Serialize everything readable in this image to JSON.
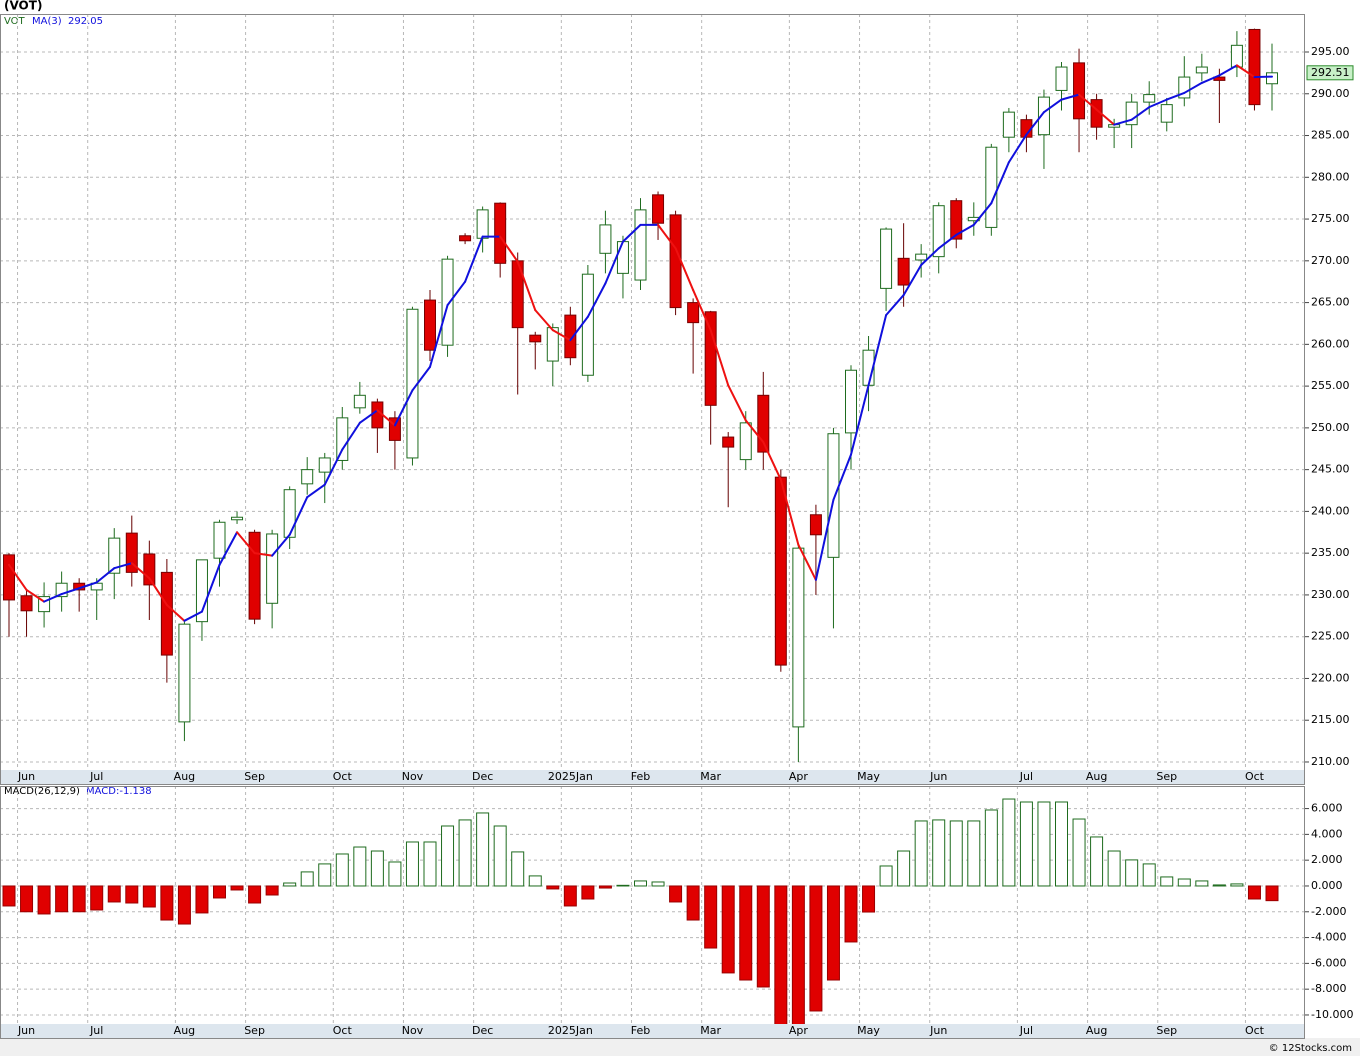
{
  "chart_data": [
    {
      "type": "candlestick",
      "title": "(VOT)",
      "symbol": "VOT",
      "categories": [
        null,
        "Jun",
        null,
        null,
        null,
        "Jul",
        null,
        null,
        null,
        null,
        "Aug",
        null,
        null,
        null,
        "Sep",
        null,
        null,
        null,
        null,
        "Oct",
        null,
        null,
        null,
        "Nov",
        null,
        null,
        null,
        "Dec",
        null,
        null,
        null,
        null,
        "2025Jan",
        null,
        null,
        null,
        "Feb",
        null,
        null,
        null,
        "Mar",
        null,
        null,
        null,
        null,
        "Apr",
        null,
        null,
        null,
        "May",
        null,
        null,
        null,
        "Jun",
        null,
        null,
        null,
        null,
        "Jul",
        null,
        null,
        null,
        "Aug",
        null,
        null,
        null,
        "Sep",
        null,
        null,
        null,
        null,
        "Oct",
        null
      ],
      "open": [
        234.8,
        229.9,
        228.0,
        229.8,
        231.4,
        230.6,
        232.6,
        237.4,
        234.9,
        232.7,
        214.8,
        226.8,
        234.4,
        239.0,
        237.5,
        229.0,
        236.9,
        243.3,
        244.7,
        246.1,
        252.4,
        253.1,
        251.2,
        246.4,
        265.3,
        259.9,
        273.0,
        272.7,
        276.9,
        270.0,
        261.1,
        258.0,
        263.5,
        256.3,
        270.9,
        268.5,
        267.7,
        277.9,
        275.5,
        265.0,
        263.9,
        248.9,
        246.2,
        253.9,
        244.1,
        214.2,
        239.6,
        234.5,
        249.4,
        255.1,
        266.7,
        270.3,
        270.1,
        270.5,
        277.2,
        274.8,
        274.0,
        284.8,
        286.9,
        285.1,
        290.4,
        293.7,
        289.3,
        286.0,
        286.3,
        289.0,
        286.6,
        289.5,
        292.5,
        292.0,
        293.2,
        297.7,
        291.2
      ],
      "high": [
        235.0,
        230.5,
        231.5,
        232.8,
        232.0,
        232.0,
        238.0,
        239.5,
        236.5,
        234.3,
        226.8,
        234.2,
        239.0,
        240.0,
        237.8,
        237.8,
        243.0,
        246.5,
        247.0,
        252.5,
        255.5,
        253.5,
        252.0,
        264.5,
        266.5,
        270.6,
        273.3,
        276.5,
        277.0,
        271.0,
        261.5,
        262.5,
        264.5,
        269.5,
        276.0,
        273.0,
        277.5,
        278.3,
        276.0,
        265.5,
        264.0,
        249.5,
        252.0,
        256.7,
        245.0,
        236.0,
        240.8,
        250.0,
        257.5,
        261.0,
        274.0,
        274.5,
        272.0,
        277.0,
        277.5,
        277.0,
        284.0,
        288.3,
        287.5,
        290.5,
        293.8,
        295.4,
        290.0,
        287.0,
        290.0,
        291.5,
        289.5,
        294.5,
        294.8,
        293.0,
        297.5,
        297.8,
        296.0
      ],
      "low": [
        225.0,
        225.0,
        226.1,
        228.0,
        228.0,
        227.0,
        229.5,
        231.0,
        227.0,
        219.5,
        212.5,
        224.5,
        231.0,
        238.5,
        226.5,
        226.0,
        235.5,
        242.0,
        241.0,
        245.0,
        251.7,
        247.0,
        245.0,
        245.5,
        258.0,
        258.5,
        272.0,
        271.0,
        268.0,
        254.0,
        257.0,
        255.0,
        257.5,
        255.5,
        268.5,
        265.5,
        266.5,
        272.5,
        263.5,
        256.5,
        248.0,
        240.5,
        245.0,
        245.0,
        220.8,
        210.0,
        230.0,
        226.0,
        245.0,
        252.0,
        264.0,
        264.5,
        268.0,
        268.5,
        271.5,
        273.0,
        273.0,
        283.0,
        283.0,
        281.0,
        288.0,
        283.0,
        284.5,
        283.5,
        283.5,
        287.5,
        285.5,
        288.5,
        291.5,
        286.5,
        292.0,
        288.0,
        288.0
      ],
      "close": [
        229.4,
        228.1,
        229.8,
        231.4,
        230.6,
        231.4,
        236.8,
        232.7,
        231.2,
        222.8,
        226.5,
        234.2,
        238.7,
        239.3,
        227.1,
        237.3,
        242.6,
        245.0,
        246.4,
        251.2,
        253.9,
        250.0,
        248.5,
        264.2,
        259.3,
        270.2,
        272.4,
        276.1,
        269.7,
        262.0,
        260.3,
        262.0,
        258.4,
        268.4,
        274.3,
        272.3,
        276.1,
        274.5,
        264.4,
        262.6,
        252.7,
        247.7,
        250.6,
        247.1,
        221.6,
        235.6,
        237.2,
        249.3,
        256.9,
        259.3,
        273.8,
        267.1,
        270.8,
        276.6,
        272.6,
        275.2,
        283.6,
        287.8,
        284.8,
        289.6,
        293.2,
        287.0,
        286.0,
        286.3,
        289.0,
        289.9,
        288.7,
        292.0,
        293.2,
        291.6,
        295.8,
        288.7,
        292.51
      ],
      "up_color": "#1e6b1e",
      "down_color": "#e00000",
      "ma": {
        "name": "MA(3)",
        "last": 292.05,
        "color_up": "#1010dd",
        "color_down": "#ee1111",
        "values": [
          233.6,
          230.6,
          229.2,
          230.1,
          230.8,
          231.5,
          233.2,
          233.8,
          232.0,
          228.8,
          226.9,
          228.0,
          233.6,
          237.5,
          235.0,
          234.7,
          237.2,
          241.7,
          243.2,
          247.4,
          250.6,
          252.1,
          250.3,
          254.5,
          257.3,
          264.7,
          267.5,
          272.9,
          272.9,
          269.9,
          264.1,
          261.7,
          260.5,
          263.3,
          267.3,
          272.3,
          274.3,
          274.3,
          271.5,
          266.5,
          261.7,
          255.1,
          250.9,
          248.3,
          243.8,
          236.0,
          231.8,
          241.4,
          246.8,
          255.1,
          263.5,
          265.9,
          269.5,
          271.5,
          273.1,
          274.3,
          276.9,
          281.8,
          285.1,
          287.8,
          289.3,
          289.9,
          288.1,
          286.3,
          286.9,
          288.4,
          289.3,
          290.1,
          291.3,
          292.2,
          293.4,
          292.0,
          292.05
        ]
      },
      "ylim": [
        209.04,
        299.55
      ],
      "yticks": [
        {
          "value": 210,
          "label": "210.00"
        },
        {
          "value": 215,
          "label": "215.00"
        },
        {
          "value": 220,
          "label": "220.00"
        },
        {
          "value": 225,
          "label": "225.00"
        },
        {
          "value": 230,
          "label": "230.00"
        },
        {
          "value": 235,
          "label": "235.00"
        },
        {
          "value": 240,
          "label": "240.00"
        },
        {
          "value": 245,
          "label": "245.00"
        },
        {
          "value": 250,
          "label": "250.00"
        },
        {
          "value": 255,
          "label": "255.00"
        },
        {
          "value": 260,
          "label": "260.00"
        },
        {
          "value": 265,
          "label": "265.00"
        },
        {
          "value": 270,
          "label": "270.00"
        },
        {
          "value": 275,
          "label": "275.00"
        },
        {
          "value": 280,
          "label": "280.00"
        },
        {
          "value": 285,
          "label": "285.00"
        },
        {
          "value": 290,
          "label": "290.00"
        },
        {
          "value": 295,
          "label": "295.00"
        }
      ],
      "grid": true
    },
    {
      "type": "bar",
      "name": "MACD(26,12,9)",
      "readout": "MACD:-1.138",
      "pos_color": "#1e6b1e",
      "neg_color": "#e00000",
      "values": [
        -1.55,
        -2.0,
        -2.17,
        -2.0,
        -2.0,
        -1.86,
        -1.24,
        -1.32,
        -1.63,
        -2.64,
        -2.95,
        -2.09,
        -0.93,
        -0.31,
        -1.32,
        -0.7,
        0.23,
        1.09,
        1.71,
        2.48,
        3.02,
        2.71,
        1.86,
        3.41,
        3.41,
        4.65,
        5.12,
        5.66,
        4.65,
        2.64,
        0.78,
        -0.23,
        -1.55,
        -1.01,
        -0.16,
        0.05,
        0.39,
        0.31,
        -1.24,
        -2.64,
        -4.81,
        -6.74,
        -7.29,
        -7.83,
        -11.0,
        -11.3,
        -9.69,
        -7.29,
        -4.34,
        -2.02,
        1.55,
        2.71,
        5.04,
        5.12,
        5.04,
        5.04,
        5.89,
        6.74,
        6.51,
        6.51,
        6.51,
        5.19,
        3.8,
        2.71,
        2.02,
        1.71,
        0.7,
        0.54,
        0.39,
        0.08,
        0.16,
        -1.01,
        -1.138
      ],
      "ylim": [
        -10.7,
        7.75
      ],
      "yticks": [
        {
          "value": -10,
          "label": "-10.000"
        },
        {
          "value": -8,
          "label": "-8.000"
        },
        {
          "value": -6,
          "label": "-6.000"
        },
        {
          "value": -4,
          "label": "-4.000"
        },
        {
          "value": -2,
          "label": "-2.000"
        },
        {
          "value": 0,
          "label": "0.000"
        },
        {
          "value": 2,
          "label": "2.000"
        },
        {
          "value": 4,
          "label": "4.000"
        },
        {
          "value": 6,
          "label": "6.000"
        }
      ],
      "grid": true
    }
  ],
  "footer": "© 12Stocks.com"
}
